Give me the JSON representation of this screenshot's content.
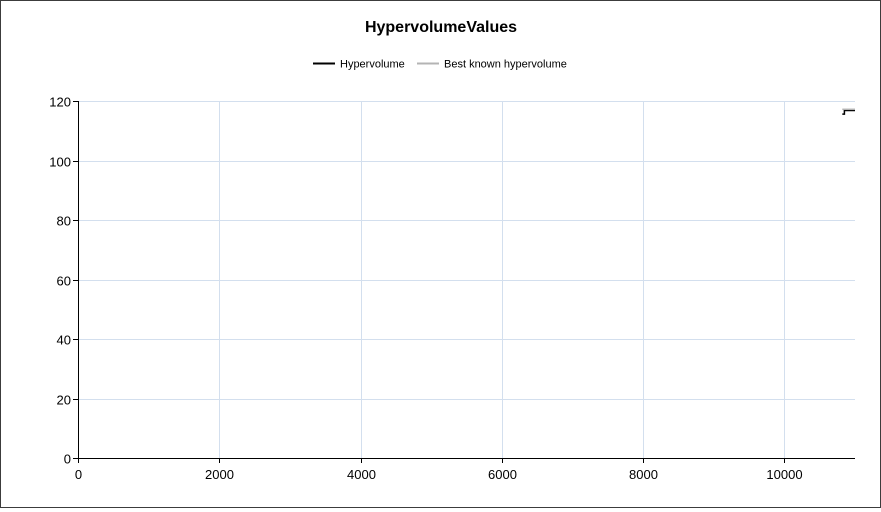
{
  "chart_data": {
    "type": "line",
    "title": "HypervolumeValues",
    "xlabel": "",
    "ylabel": "",
    "xlim": [
      0,
      11000
    ],
    "ylim": [
      0,
      120
    ],
    "xticks": [
      0,
      2000,
      4000,
      6000,
      8000,
      10000
    ],
    "yticks": [
      0,
      20,
      40,
      60,
      80,
      100,
      120
    ],
    "grid": true,
    "legend_position": "top-center",
    "series": [
      {
        "name": "Hypervolume",
        "color": "#000000",
        "points": [
          [
            10820,
            115.6
          ],
          [
            10850,
            115.6
          ],
          [
            10850,
            116.8
          ],
          [
            11000,
            116.8
          ]
        ]
      },
      {
        "name": "Best known hypervolume",
        "color": "#b4b4b4",
        "points": [
          [
            10820,
            117.2
          ],
          [
            11000,
            117.2
          ]
        ]
      }
    ]
  },
  "colors": {
    "grid": "#d3dfee",
    "axis": "#000000"
  }
}
